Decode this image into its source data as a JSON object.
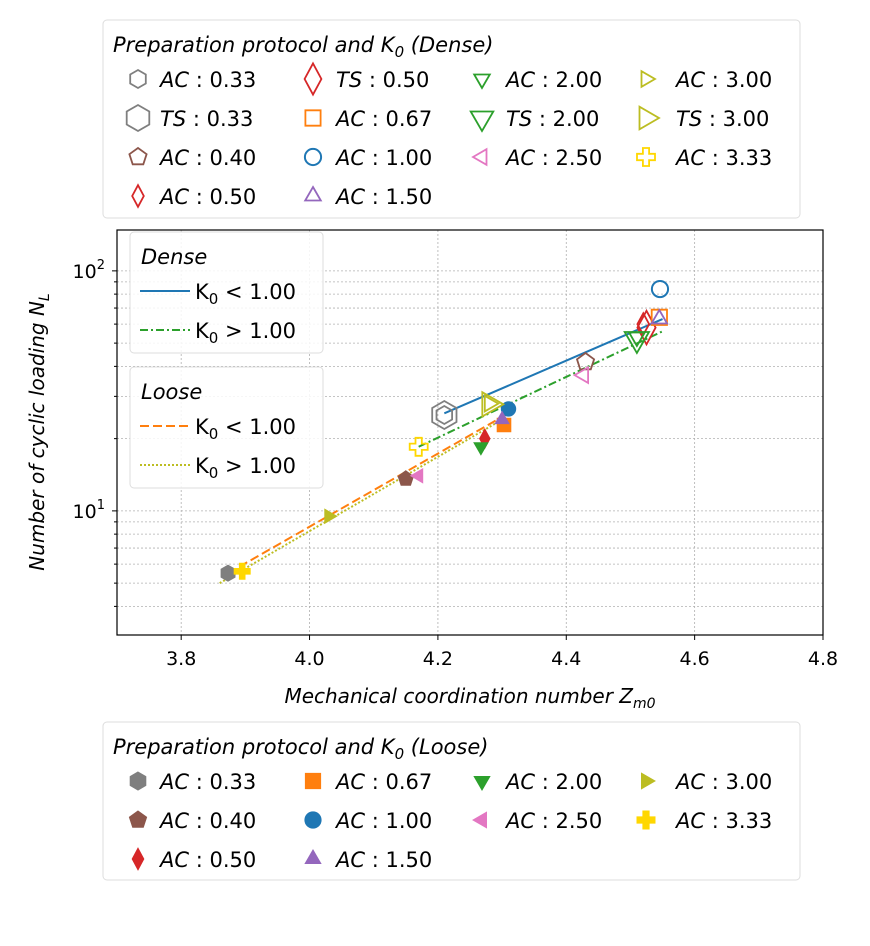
{
  "chart_data": {
    "type": "scatter",
    "xlabel": "Mechanical coordination number Z_{m0}",
    "ylabel": "Number of cyclic loading N_{L}",
    "xlim": [
      3.7,
      4.8
    ],
    "ylim": [
      3.04,
      148
    ],
    "yscale": "log",
    "xticks": [
      "3.8",
      "4.0",
      "4.2",
      "4.4",
      "4.6",
      "4.8"
    ],
    "yticks": [
      {
        "base": "10",
        "exp": "1",
        "value": 10
      },
      {
        "base": "10",
        "exp": "2",
        "value": 100
      }
    ],
    "grid": true,
    "colors": {
      "0.33": "#7f7f7f",
      "0.40": "#8c564b",
      "0.50": "#d62728",
      "0.67": "#ff7f0e",
      "1.00": "#1f77b4",
      "1.50": "#9467bd",
      "2.00": "#2ca02c",
      "2.50": "#e377c2",
      "3.00": "#bcbd22",
      "3.33": "#ffd700"
    },
    "dense_legend": {
      "title": "Preparation protocol and K_{0} (Dense)",
      "entries": [
        {
          "protocol": "AC",
          "k0": "0.33",
          "marker": "hexagon",
          "size": "small"
        },
        {
          "protocol": "TS",
          "k0": "0.33",
          "marker": "hexagon",
          "size": "large"
        },
        {
          "protocol": "AC",
          "k0": "0.40",
          "marker": "pentagon",
          "size": "small"
        },
        {
          "protocol": "AC",
          "k0": "0.50",
          "marker": "diamond",
          "size": "small"
        },
        {
          "protocol": "TS",
          "k0": "0.50",
          "marker": "diamond",
          "size": "large"
        },
        {
          "protocol": "AC",
          "k0": "0.67",
          "marker": "square",
          "size": "small"
        },
        {
          "protocol": "AC",
          "k0": "1.00",
          "marker": "circle",
          "size": "small"
        },
        {
          "protocol": "AC",
          "k0": "1.50",
          "marker": "triangle-up",
          "size": "small"
        },
        {
          "protocol": "AC",
          "k0": "2.00",
          "marker": "triangle-down",
          "size": "small"
        },
        {
          "protocol": "TS",
          "k0": "2.00",
          "marker": "triangle-down",
          "size": "large"
        },
        {
          "protocol": "AC",
          "k0": "2.50",
          "marker": "triangle-left",
          "size": "small"
        },
        {
          "protocol": "AC",
          "k0": "3.00",
          "marker": "triangle-right",
          "size": "small"
        },
        {
          "protocol": "TS",
          "k0": "3.00",
          "marker": "triangle-right",
          "size": "large"
        },
        {
          "protocol": "AC",
          "k0": "3.33",
          "marker": "plus",
          "size": "small"
        }
      ]
    },
    "loose_legend": {
      "title": "Preparation protocol and K_{0} (Loose)",
      "entries": [
        {
          "protocol": "AC",
          "k0": "0.33",
          "marker": "hexagon"
        },
        {
          "protocol": "AC",
          "k0": "0.40",
          "marker": "pentagon"
        },
        {
          "protocol": "AC",
          "k0": "0.50",
          "marker": "diamond"
        },
        {
          "protocol": "AC",
          "k0": "0.67",
          "marker": "square"
        },
        {
          "protocol": "AC",
          "k0": "1.00",
          "marker": "circle"
        },
        {
          "protocol": "AC",
          "k0": "1.50",
          "marker": "triangle-up"
        },
        {
          "protocol": "AC",
          "k0": "2.00",
          "marker": "triangle-down"
        },
        {
          "protocol": "AC",
          "k0": "2.50",
          "marker": "triangle-left"
        },
        {
          "protocol": "AC",
          "k0": "3.00",
          "marker": "triangle-right"
        },
        {
          "protocol": "AC",
          "k0": "3.33",
          "marker": "plus"
        }
      ]
    },
    "dense_points": [
      {
        "label": "AC:0.33",
        "k0": "0.33",
        "marker": "hexagon",
        "size": "small",
        "x": 4.21,
        "y": 25.1
      },
      {
        "label": "TS:0.33",
        "k0": "0.33",
        "marker": "hexagon",
        "size": "large",
        "x": 4.21,
        "y": 25.1
      },
      {
        "label": "AC:0.40",
        "k0": "0.40",
        "marker": "pentagon",
        "size": "small",
        "x": 4.43,
        "y": 41.7
      },
      {
        "label": "AC:0.50",
        "k0": "0.50",
        "marker": "diamond",
        "size": "small",
        "x": 4.52,
        "y": 60
      },
      {
        "label": "TS:0.50",
        "k0": "0.50",
        "marker": "diamond",
        "size": "large",
        "x": 4.525,
        "y": 58
      },
      {
        "label": "AC:0.67",
        "k0": "0.67",
        "marker": "square",
        "size": "small",
        "x": 4.545,
        "y": 64
      },
      {
        "label": "AC:1.00",
        "k0": "1.00",
        "marker": "circle",
        "size": "small",
        "x": 4.546,
        "y": 84
      },
      {
        "label": "AC:1.50",
        "k0": "1.50",
        "marker": "triangle-up",
        "size": "small",
        "x": 4.545,
        "y": 63
      },
      {
        "label": "AC:2.00",
        "k0": "2.00",
        "marker": "triangle-down",
        "size": "small",
        "x": 4.51,
        "y": 53
      },
      {
        "label": "TS:2.00",
        "k0": "2.00",
        "marker": "triangle-down",
        "size": "large",
        "x": 4.51,
        "y": 52
      },
      {
        "label": "AC:2.50",
        "k0": "2.50",
        "marker": "triangle-left",
        "size": "small",
        "x": 4.427,
        "y": 36.8
      },
      {
        "label": "AC:3.00",
        "k0": "3.00",
        "marker": "triangle-right",
        "size": "small",
        "x": 4.28,
        "y": 28
      },
      {
        "label": "TS:3.00",
        "k0": "3.00",
        "marker": "triangle-right",
        "size": "large",
        "x": 4.28,
        "y": 27.8
      },
      {
        "label": "AC:3.33",
        "k0": "3.33",
        "marker": "plus",
        "size": "small",
        "x": 4.17,
        "y": 18.5
      }
    ],
    "loose_points": [
      {
        "label": "AC:0.33",
        "k0": "0.33",
        "marker": "hexagon",
        "x": 3.873,
        "y": 5.5
      },
      {
        "label": "AC:0.40",
        "k0": "0.40",
        "marker": "pentagon",
        "x": 4.15,
        "y": 13.6
      },
      {
        "label": "AC:0.50",
        "k0": "0.50",
        "marker": "diamond",
        "x": 4.273,
        "y": 20
      },
      {
        "label": "AC:0.67",
        "k0": "0.67",
        "marker": "square",
        "x": 4.303,
        "y": 22.8
      },
      {
        "label": "AC:1.00",
        "k0": "1.00",
        "marker": "circle",
        "x": 4.31,
        "y": 26.6
      },
      {
        "label": "AC:1.50",
        "k0": "1.50",
        "marker": "triangle-up",
        "x": 4.3,
        "y": 24
      },
      {
        "label": "AC:2.00",
        "k0": "2.00",
        "marker": "triangle-down",
        "x": 4.267,
        "y": 18.5
      },
      {
        "label": "AC:2.50",
        "k0": "2.50",
        "marker": "triangle-left",
        "x": 4.17,
        "y": 14
      },
      {
        "label": "AC:3.00",
        "k0": "3.00",
        "marker": "triangle-right",
        "x": 4.03,
        "y": 9.5
      },
      {
        "label": "AC:3.33",
        "k0": "3.33",
        "marker": "plus",
        "x": 3.895,
        "y": 5.6
      }
    ],
    "fit_lines": [
      {
        "group": "Dense",
        "label": "K_{0} < 1.00",
        "color": "#1f77b4",
        "style": "solid",
        "x": [
          4.21,
          4.55
        ],
        "y": [
          25.5,
          63
        ]
      },
      {
        "group": "Dense",
        "label": "K_{0} > 1.00",
        "color": "#2ca02c",
        "style": "dashdot",
        "x": [
          4.17,
          4.55
        ],
        "y": [
          18.5,
          56
        ]
      },
      {
        "group": "Loose",
        "label": "K_{0} < 1.00",
        "color": "#ff7f0e",
        "style": "dashed",
        "x": [
          3.873,
          4.31
        ],
        "y": [
          5.5,
          25.5
        ]
      },
      {
        "group": "Loose",
        "label": "K_{0} > 1.00",
        "color": "#bcbd22",
        "style": "dotted",
        "x": [
          3.86,
          4.3
        ],
        "y": [
          5.0,
          24
        ]
      }
    ],
    "line_legends": [
      {
        "title": "Dense",
        "entries": [
          0,
          1
        ]
      },
      {
        "title": "Loose",
        "entries": [
          2,
          3
        ]
      }
    ]
  }
}
